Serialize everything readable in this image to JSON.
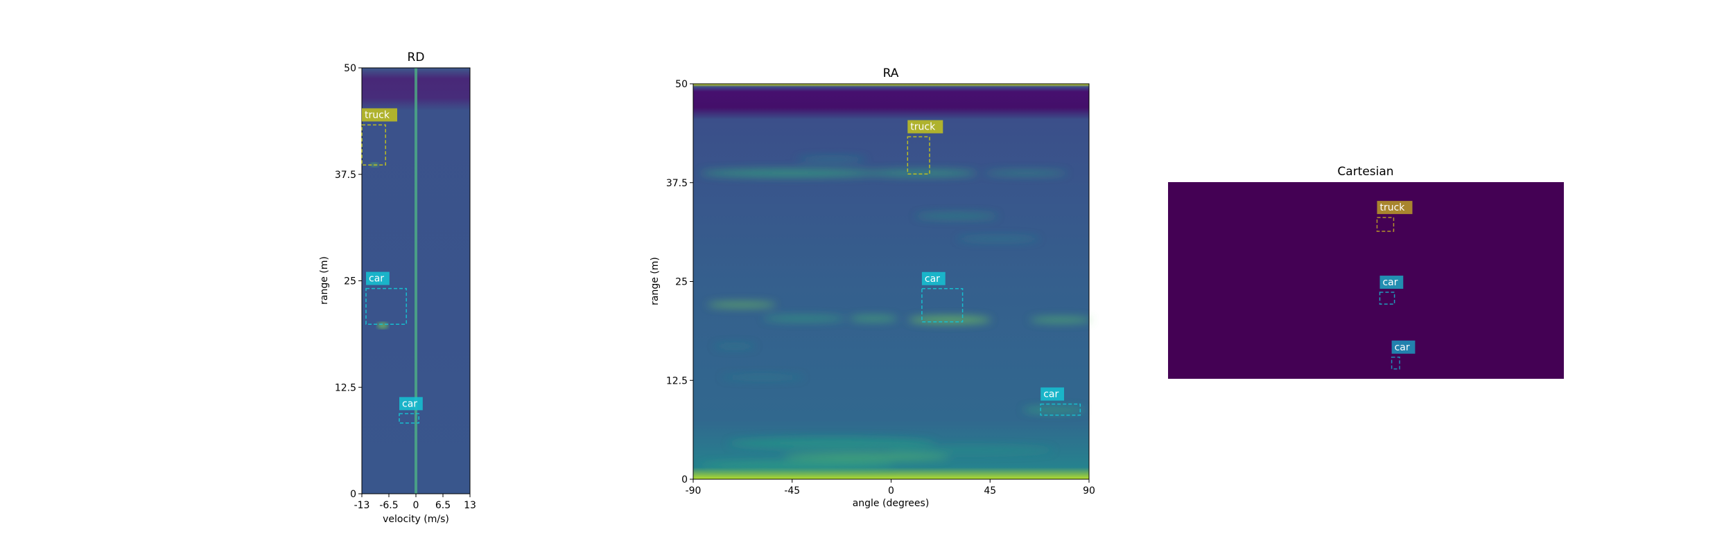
{
  "chart_data": [
    {
      "type": "heatmap",
      "title": "RD",
      "xlabel": "velocity (m/s)",
      "ylabel": "range (m)",
      "xlim": [
        -13,
        13
      ],
      "ylim": [
        0,
        50
      ],
      "xticks": [
        "-13",
        "-6.5",
        "0",
        "6.5",
        "13"
      ],
      "yticks": [
        "0",
        "12.5",
        "25",
        "37.5",
        "50"
      ],
      "detections": [
        {
          "label": "truck",
          "x": [
            -13,
            -7.3
          ],
          "y": [
            38.6,
            43.3
          ],
          "color": "#bcbd22"
        },
        {
          "label": "car",
          "x": [
            -12,
            -2.3
          ],
          "y": [
            19.9,
            24.1
          ],
          "color": "#17becf"
        },
        {
          "label": "car",
          "x": [
            -4,
            0.7
          ],
          "y": [
            8.3,
            9.4
          ],
          "color": "#17becf"
        }
      ]
    },
    {
      "type": "heatmap",
      "title": "RA",
      "xlabel": "angle (degrees)",
      "ylabel": "range (m)",
      "xlim": [
        -90,
        90
      ],
      "ylim": [
        0,
        50
      ],
      "xticks": [
        "-90",
        "-45",
        "0",
        "45",
        "90"
      ],
      "yticks": [
        "0",
        "12.5",
        "25",
        "37.5",
        "50"
      ],
      "detections": [
        {
          "label": "truck",
          "x": [
            7.5,
            17.5
          ],
          "y": [
            38.6,
            43.3
          ],
          "color": "#bcbd22"
        },
        {
          "label": "car",
          "x": [
            14,
            32.5
          ],
          "y": [
            19.9,
            24.1
          ],
          "color": "#17becf"
        },
        {
          "label": "car",
          "x": [
            68,
            86
          ],
          "y": [
            8.1,
            9.5
          ],
          "color": "#17becf"
        }
      ]
    },
    {
      "type": "heatmap",
      "title": "Cartesian",
      "xlabel": "",
      "ylabel": "",
      "detections": [
        {
          "label": "truck",
          "x": [
            0.528,
            0.57
          ],
          "y": [
            0.75,
            0.82
          ],
          "color": "#b5942a"
        },
        {
          "label": "car",
          "x": [
            0.535,
            0.572
          ],
          "y": [
            0.38,
            0.44
          ],
          "color": "#1f9dbb"
        },
        {
          "label": "car",
          "x": [
            0.565,
            0.585
          ],
          "y": [
            0.05,
            0.11
          ],
          "color": "#1f8fb8"
        }
      ]
    }
  ],
  "colors": {
    "viridis_dark": "#440154",
    "rd_background": "#3b528b",
    "ra_background": "#3b5b8f",
    "cartesian_background": "#440154"
  }
}
